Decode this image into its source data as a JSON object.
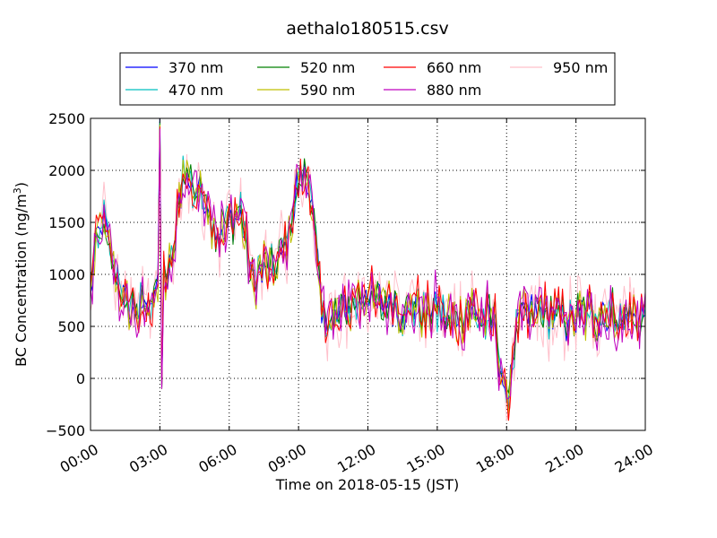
{
  "chart_data": {
    "type": "line",
    "title": "aethalo180515.csv",
    "xlabel": "Time on 2018-05-15 (JST)",
    "ylabel_main": "BC Concentration (ng/m",
    "ylabel_sup": "3",
    "ylabel_close": ")",
    "xlim": [
      0,
      24
    ],
    "ylim": [
      -500,
      2500
    ],
    "xticks": [
      {
        "v": 0,
        "label": "00:00"
      },
      {
        "v": 3,
        "label": "03:00"
      },
      {
        "v": 6,
        "label": "06:00"
      },
      {
        "v": 9,
        "label": "09:00"
      },
      {
        "v": 12,
        "label": "12:00"
      },
      {
        "v": 15,
        "label": "15:00"
      },
      {
        "v": 18,
        "label": "18:00"
      },
      {
        "v": 21,
        "label": "21:00"
      },
      {
        "v": 24,
        "label": "24:00"
      }
    ],
    "yticks": [
      {
        "v": -500,
        "label": "−500"
      },
      {
        "v": 0,
        "label": "0"
      },
      {
        "v": 500,
        "label": "500"
      },
      {
        "v": 1000,
        "label": "1000"
      },
      {
        "v": 1500,
        "label": "1500"
      },
      {
        "v": 2000,
        "label": "2000"
      },
      {
        "v": 2500,
        "label": "2500"
      }
    ],
    "grid": true,
    "legend_position": "top",
    "series": [
      {
        "name": "370 nm",
        "color": "#0000ff"
      },
      {
        "name": "470 nm",
        "color": "#00bfbf"
      },
      {
        "name": "520 nm",
        "color": "#008000"
      },
      {
        "name": "590 nm",
        "color": "#bfbf00"
      },
      {
        "name": "660 nm",
        "color": "#ff0000"
      },
      {
        "name": "880 nm",
        "color": "#bf00bf"
      },
      {
        "name": "950 nm",
        "color": "#ffc0cb"
      }
    ],
    "x": [
      0.0,
      0.5,
      1.0,
      1.5,
      2.0,
      2.5,
      3.0,
      3.5,
      4.0,
      4.5,
      5.0,
      5.5,
      6.0,
      6.5,
      7.0,
      7.5,
      8.0,
      8.5,
      9.0,
      9.5,
      10.0,
      10.5,
      11.0,
      11.5,
      12.0,
      12.5,
      13.0,
      13.5,
      14.0,
      14.5,
      15.0,
      15.5,
      16.0,
      16.5,
      17.0,
      17.5,
      18.0,
      18.5,
      19.0,
      19.5,
      20.0,
      20.5,
      21.0,
      21.5,
      22.0,
      22.5,
      23.0,
      23.5,
      24.0
    ],
    "baseline": [
      900,
      1550,
      1050,
      700,
      680,
      650,
      950,
      1050,
      2000,
      1800,
      1750,
      1350,
      1500,
      1650,
      900,
      1100,
      1050,
      1350,
      1900,
      1900,
      600,
      580,
      650,
      750,
      800,
      700,
      750,
      650,
      720,
      620,
      650,
      580,
      560,
      700,
      580,
      520,
      -250,
      600,
      580,
      650,
      600,
      550,
      580,
      620,
      600,
      650,
      550,
      600,
      620
    ]
  }
}
